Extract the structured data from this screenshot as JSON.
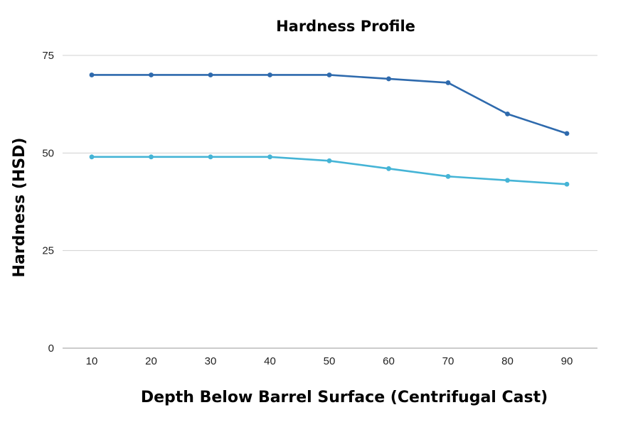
{
  "chart_data": {
    "type": "line",
    "title": "Hardness Profile",
    "xlabel": "Depth Below Barrel Surface (Centrifugal Cast)",
    "ylabel": "Hardness (HSD)",
    "categories": [
      "10",
      "20",
      "30",
      "40",
      "50",
      "60",
      "70",
      "80",
      "90"
    ],
    "yticks": [
      "0",
      "25",
      "50",
      "75"
    ],
    "ylim": [
      0,
      75
    ],
    "grid": true,
    "legend": "none",
    "series": [
      {
        "name": "Series 1",
        "color": "#2e6aad",
        "values": [
          70,
          70,
          70,
          70,
          70,
          69,
          68,
          60,
          55
        ]
      },
      {
        "name": "Series 2",
        "color": "#45b4d6",
        "values": [
          49,
          49,
          49,
          49,
          48,
          46,
          44,
          43,
          42
        ]
      }
    ]
  }
}
